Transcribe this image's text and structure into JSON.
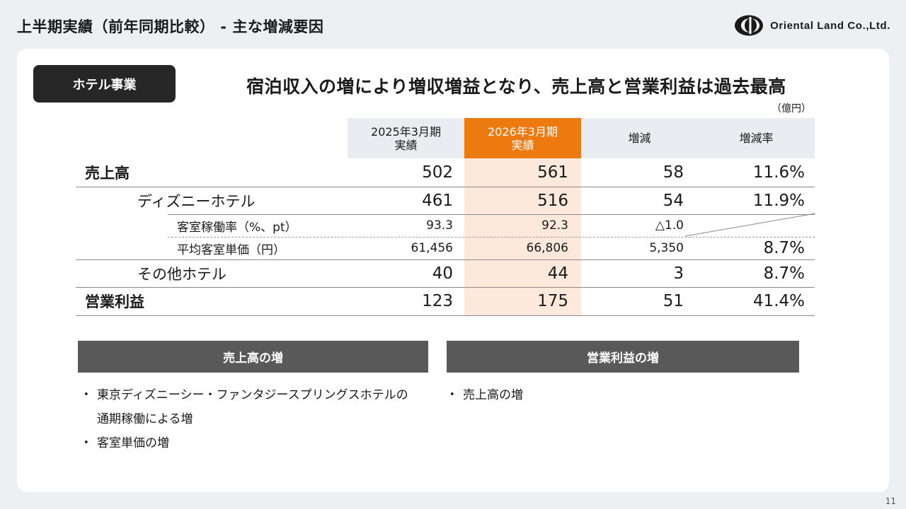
{
  "page_title": "上半期実績（前年同期比較） - 主な増減要因",
  "logo_text": "Oriental Land Co.,Ltd.",
  "segment": "ホテル事業",
  "headline": "宿泊収入の増により増収増益となり、売上高と営業利益は過去最高",
  "unit": "（億円）",
  "table": {
    "headers": {
      "prev_line1": "2025年3月期",
      "prev_line2": "実績",
      "cur_line1": "2026年3月期",
      "cur_line2": "実績",
      "diff": "増減",
      "rate": "増減率"
    },
    "rows": [
      {
        "label": "売上高",
        "prev": "502",
        "cur": "561",
        "diff": "58",
        "rate": "11.6%"
      },
      {
        "label": "ディズニーホテル",
        "prev": "461",
        "cur": "516",
        "diff": "54",
        "rate": "11.9%"
      },
      {
        "label": "客室稼働率（%、pt）",
        "prev": "93.3",
        "cur": "92.3",
        "diff": "△1.0",
        "rate": ""
      },
      {
        "label": "平均客室単価（円）",
        "prev": "61,456",
        "cur": "66,806",
        "diff": "5,350",
        "rate": "8.7%"
      },
      {
        "label": "その他ホテル",
        "prev": "40",
        "cur": "44",
        "diff": "3",
        "rate": "8.7%"
      },
      {
        "label": "営業利益",
        "prev": "123",
        "cur": "175",
        "diff": "51",
        "rate": "41.4%"
      }
    ]
  },
  "sales_increase": {
    "title": "売上高の増",
    "bullets": [
      "東京ディズニーシー・ファンタジースプリングスホテルの",
      "通期稼働による増",
      "客室単価の増"
    ]
  },
  "profit_increase": {
    "title": "営業利益の増",
    "bullets": [
      "売上高の増"
    ]
  },
  "page_number": "11"
}
